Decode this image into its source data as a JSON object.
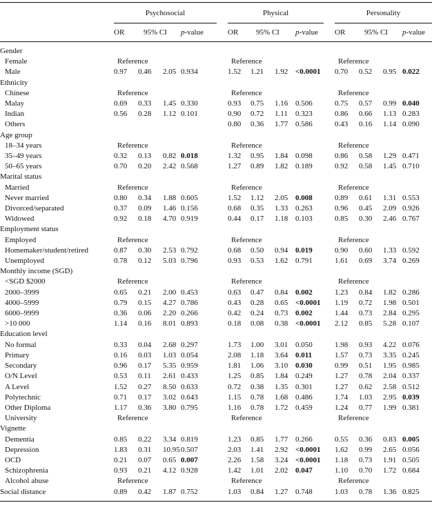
{
  "header": {
    "groups": [
      "Psychosocial",
      "Physical",
      "Personality"
    ],
    "columns": {
      "or": "OR",
      "ci": "95% CI",
      "p_italic": "p",
      "p_rest": "-value"
    }
  },
  "reference_label": "Reference",
  "rows": [
    {
      "label": "Gender",
      "indent": false
    },
    {
      "label": "Female",
      "indent": true,
      "cells": [
        "ref",
        "ref",
        "ref"
      ]
    },
    {
      "label": "Male",
      "indent": true,
      "cells": [
        [
          "0.97",
          "0.46",
          "2.05",
          "0.934",
          false
        ],
        [
          "1.52",
          "1.21",
          "1.92",
          "<0.0001",
          true
        ],
        [
          "0.70",
          "0.52",
          "0.95",
          "0.022",
          true
        ]
      ]
    },
    {
      "label": "Ethnicity",
      "indent": false
    },
    {
      "label": "Chinese",
      "indent": true,
      "cells": [
        "ref",
        "ref",
        "ref"
      ]
    },
    {
      "label": "Malay",
      "indent": true,
      "cells": [
        [
          "0.69",
          "0.33",
          "1.45",
          "0.330",
          false
        ],
        [
          "0.93",
          "0.75",
          "1.16",
          "0.506",
          false
        ],
        [
          "0.75",
          "0.57",
          "0.99",
          "0.040",
          true
        ]
      ]
    },
    {
      "label": "Indian",
      "indent": true,
      "cells": [
        [
          "0.56",
          "0.28",
          "1.12",
          "0.101",
          false
        ],
        [
          "0.90",
          "0.72",
          "1.11",
          "0.323",
          false
        ],
        [
          "0.86",
          "0.66",
          "1.13",
          "0.283",
          false
        ]
      ]
    },
    {
      "label": "Others",
      "indent": true,
      "cells": [
        null,
        [
          "0.80",
          "0.36",
          "1.77",
          "0.586",
          false
        ],
        [
          "0.43",
          "0.16",
          "1.14",
          "0.090",
          false
        ]
      ]
    },
    {
      "label": "Age group",
      "indent": false
    },
    {
      "label": "18–34 years",
      "indent": true,
      "cells": [
        "ref",
        "ref",
        "ref"
      ]
    },
    {
      "label": "35–49 years",
      "indent": true,
      "cells": [
        [
          "0.32",
          "0.13",
          "0.82",
          "0.018",
          true
        ],
        [
          "1.32",
          "0.95",
          "1.84",
          "0.098",
          false
        ],
        [
          "0.86",
          "0.58",
          "1.29",
          "0.471",
          false
        ]
      ]
    },
    {
      "label": "50–65 years",
      "indent": true,
      "cells": [
        [
          "0.70",
          "0.20",
          "2.42",
          "0.568",
          false
        ],
        [
          "1.27",
          "0.89",
          "1.82",
          "0.189",
          false
        ],
        [
          "0.92",
          "0.58",
          "1.45",
          "0.710",
          false
        ]
      ]
    },
    {
      "label": "Marital status",
      "indent": false
    },
    {
      "label": "Married",
      "indent": true,
      "cells": [
        "ref",
        "ref",
        "ref"
      ]
    },
    {
      "label": "Never married",
      "indent": true,
      "cells": [
        [
          "0.80",
          "0.34",
          "1.88",
          "0.605",
          false
        ],
        [
          "1.52",
          "1.12",
          "2.05",
          "0.008",
          true
        ],
        [
          "0.89",
          "0.61",
          "1.31",
          "0.553",
          false
        ]
      ]
    },
    {
      "label": "Divorced/separated",
      "indent": true,
      "cells": [
        [
          "0.37",
          "0.09",
          "1.46",
          "0.156",
          false
        ],
        [
          "0.68",
          "0.35",
          "1.33",
          "0.263",
          false
        ],
        [
          "0.96",
          "0.45",
          "2.09",
          "0.926",
          false
        ]
      ]
    },
    {
      "label": "Widowed",
      "indent": true,
      "cells": [
        [
          "0.92",
          "0.18",
          "4.70",
          "0.919",
          false
        ],
        [
          "0.44",
          "0.17",
          "1.18",
          "0.103",
          false
        ],
        [
          "0.85",
          "0.30",
          "2.46",
          "0.767",
          false
        ]
      ]
    },
    {
      "label": "Employment status",
      "indent": false
    },
    {
      "label": "Employed",
      "indent": true,
      "cells": [
        "ref",
        "ref",
        "ref"
      ]
    },
    {
      "label": "Homemaker/student/retired",
      "indent": true,
      "cells": [
        [
          "0.87",
          "0.30",
          "2.53",
          "0.792",
          false
        ],
        [
          "0.68",
          "0.50",
          "0.94",
          "0.019",
          true
        ],
        [
          "0.90",
          "0.60",
          "1.33",
          "0.592",
          false
        ]
      ]
    },
    {
      "label": "Unemployed",
      "indent": true,
      "cells": [
        [
          "0.78",
          "0.12",
          "5.03",
          "0.796",
          false
        ],
        [
          "0.93",
          "0.53",
          "1.62",
          "0.791",
          false
        ],
        [
          "1.61",
          "0.69",
          "3.74",
          "0.269",
          false
        ]
      ]
    },
    {
      "label": "Monthly income (SGD)",
      "indent": false
    },
    {
      "label": "<SGD $2000",
      "indent": true,
      "cells": [
        "ref",
        "ref",
        "ref"
      ]
    },
    {
      "label": "2000–3999",
      "indent": true,
      "cells": [
        [
          "0.65",
          "0.21",
          "2.00",
          "0.453",
          false
        ],
        [
          "0.63",
          "0.47",
          "0.84",
          "0.002",
          true
        ],
        [
          "1.23",
          "0.84",
          "1.82",
          "0.286",
          false
        ]
      ]
    },
    {
      "label": "4000–5999",
      "indent": true,
      "cells": [
        [
          "0.79",
          "0.15",
          "4.27",
          "0.786",
          false
        ],
        [
          "0.43",
          "0.28",
          "0.65",
          "<0.0001",
          true
        ],
        [
          "1.19",
          "0.72",
          "1.98",
          "0.501",
          false
        ]
      ]
    },
    {
      "label": "6000–9999",
      "indent": true,
      "cells": [
        [
          "0.36",
          "0.06",
          "2.20",
          "0.266",
          false
        ],
        [
          "0.42",
          "0.24",
          "0.73",
          "0.002",
          true
        ],
        [
          "1.44",
          "0.73",
          "2.84",
          "0.295",
          false
        ]
      ]
    },
    {
      "label": ">10 000",
      "indent": true,
      "cells": [
        [
          "1.14",
          "0.16",
          "8.01",
          "0.893",
          false
        ],
        [
          "0.18",
          "0.08",
          "0.38",
          "<0.0001",
          true
        ],
        [
          "2.12",
          "0.85",
          "5.28",
          "0.107",
          false
        ]
      ]
    },
    {
      "label": "Education level",
      "indent": false
    },
    {
      "label": "No formal",
      "indent": true,
      "cells": [
        [
          "0.33",
          "0.04",
          "2.68",
          "0.297",
          false
        ],
        [
          "1.73",
          "1.00",
          "3.01",
          "0.050",
          false
        ],
        [
          "1.98",
          "0.93",
          "4.22",
          "0.076",
          false
        ]
      ]
    },
    {
      "label": "Primary",
      "indent": true,
      "cells": [
        [
          "0.16",
          "0.03",
          "1.03",
          "0.054",
          false
        ],
        [
          "2.08",
          "1.18",
          "3.64",
          "0.011",
          true
        ],
        [
          "1.57",
          "0.73",
          "3.35",
          "0.245",
          false
        ]
      ]
    },
    {
      "label": "Secondary",
      "indent": true,
      "cells": [
        [
          "0.96",
          "0.17",
          "5.35",
          "0.959",
          false
        ],
        [
          "1.81",
          "1.06",
          "3.10",
          "0.030",
          true
        ],
        [
          "0.99",
          "0.51",
          "1.95",
          "0.985",
          false
        ]
      ]
    },
    {
      "label": "O/N Level",
      "indent": true,
      "cells": [
        [
          "0.53",
          "0.11",
          "2.61",
          "0.433",
          false
        ],
        [
          "1.25",
          "0.85",
          "1.84",
          "0.249",
          false
        ],
        [
          "1.27",
          "0.78",
          "2.04",
          "0.337",
          false
        ]
      ]
    },
    {
      "label": "A Level",
      "indent": true,
      "cells": [
        [
          "1.52",
          "0.27",
          "8.50",
          "0.633",
          false
        ],
        [
          "0.72",
          "0.38",
          "1.35",
          "0.301",
          false
        ],
        [
          "1.27",
          "0.62",
          "2.58",
          "0.512",
          false
        ]
      ]
    },
    {
      "label": "Polytechnic",
      "indent": true,
      "cells": [
        [
          "0.71",
          "0.17",
          "3.02",
          "0.643",
          false
        ],
        [
          "1.15",
          "0.78",
          "1.68",
          "0.486",
          false
        ],
        [
          "1.74",
          "1.03",
          "2.95",
          "0.039",
          true
        ]
      ]
    },
    {
      "label": "Other Diploma",
      "indent": true,
      "cells": [
        [
          "1.17",
          "0.36",
          "3.80",
          "0.795",
          false
        ],
        [
          "1.16",
          "0.78",
          "1.72",
          "0.459",
          false
        ],
        [
          "1.24",
          "0.77",
          "1.99",
          "0.381",
          false
        ]
      ]
    },
    {
      "label": "University",
      "indent": true,
      "cells": [
        "ref",
        "ref",
        "ref"
      ]
    },
    {
      "label": "Vignette",
      "indent": false
    },
    {
      "label": "Dementia",
      "indent": true,
      "cells": [
        [
          "0.85",
          "0.22",
          "3.34",
          "0.819",
          false
        ],
        [
          "1.23",
          "0.85",
          "1.77",
          "0.266",
          false
        ],
        [
          "0.55",
          "0.36",
          "0.83",
          "0.005",
          true
        ]
      ]
    },
    {
      "label": "Depression",
      "indent": true,
      "cells": [
        [
          "1.83",
          "0.31",
          "10.95",
          "0.507",
          false
        ],
        [
          "2.03",
          "1.41",
          "2.92",
          "<0.0001",
          true
        ],
        [
          "1.62",
          "0.99",
          "2.65",
          "0.056",
          false
        ]
      ]
    },
    {
      "label": "OCD",
      "indent": true,
      "cells": [
        [
          "0.21",
          "0.07",
          "0.65",
          "0.007",
          true
        ],
        [
          "2.26",
          "1.58",
          "3.24",
          "<0.0001",
          true
        ],
        [
          "1.18",
          "0.73",
          "1.91",
          "0.505",
          false
        ]
      ]
    },
    {
      "label": "Schizophrenia",
      "indent": true,
      "cells": [
        [
          "0.93",
          "0.21",
          "4.12",
          "0.928",
          false
        ],
        [
          "1.42",
          "1.01",
          "2.02",
          "0.047",
          true
        ],
        [
          "1.10",
          "0.70",
          "1.72",
          "0.684",
          false
        ]
      ]
    },
    {
      "label": "Alcohol abuse",
      "indent": true,
      "cells": [
        "ref",
        "ref",
        "ref"
      ]
    },
    {
      "label": "Social distance",
      "indent": false,
      "cells": [
        [
          "0.89",
          "0.42",
          "1.87",
          "0.752",
          false
        ],
        [
          "1.03",
          "0.84",
          "1.27",
          "0.748",
          false
        ],
        [
          "1.03",
          "0.78",
          "1.36",
          "0.825",
          false
        ]
      ]
    }
  ]
}
